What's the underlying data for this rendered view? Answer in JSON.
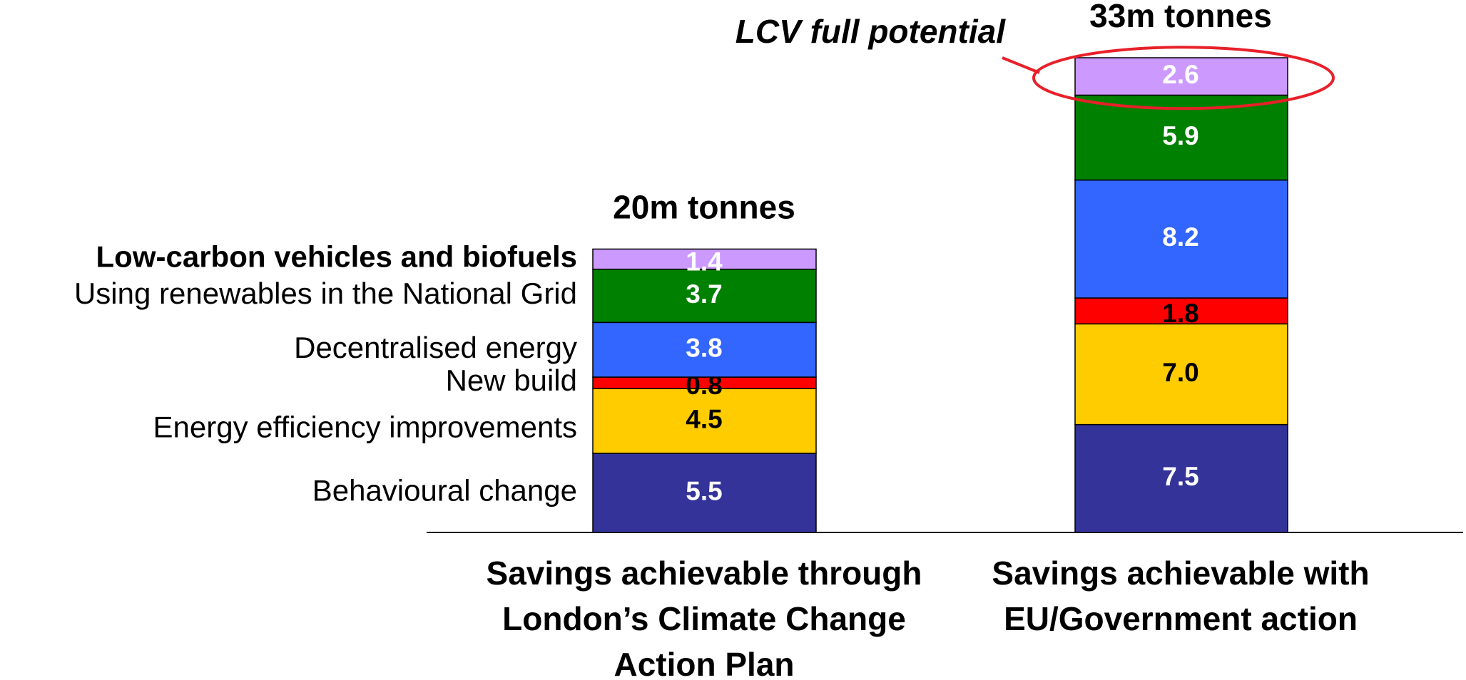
{
  "chart_data": {
    "type": "stacked_bar",
    "categories": [
      "Savings achievable through London’s Climate Change Action Plan",
      "Savings achievable with EU/Government action"
    ],
    "total_labels": [
      "20m tonnes",
      "33m tonnes"
    ],
    "annotation": "LCV full potential",
    "series": [
      {
        "name": "Behavioural change",
        "color": "#333399",
        "label_color": "#ffffff",
        "values": [
          5.5,
          7.5
        ]
      },
      {
        "name": "Energy efficiency improvements",
        "color": "#ffcc00",
        "label_color": "#000000",
        "values": [
          4.5,
          7.0
        ],
        "value_labels": [
          "4.5",
          "7.0"
        ]
      },
      {
        "name": "New build",
        "color": "#ff0000",
        "label_color": "#000000",
        "values": [
          0.8,
          1.8
        ]
      },
      {
        "name": "Decentralised energy",
        "color": "#3366ff",
        "label_color": "#ffffff",
        "values": [
          3.8,
          8.2
        ]
      },
      {
        "name": "Using renewables in the National Grid",
        "color": "#008000",
        "label_color": "#ffffff",
        "values": [
          3.7,
          5.9
        ]
      },
      {
        "name": "Low-carbon vehicles and biofuels",
        "color": "#cc99ff",
        "label_color": "#ffffff",
        "values": [
          1.4,
          2.6
        ],
        "bold": true
      }
    ]
  }
}
